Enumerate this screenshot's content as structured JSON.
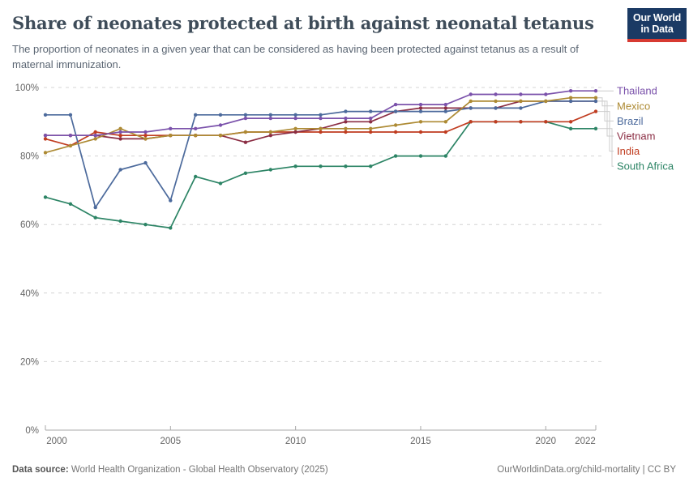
{
  "header": {
    "title": "Share of neonates protected at birth against neonatal tetanus",
    "subtitle": "The proportion of neonates in a given year that can be considered as having been protected against tetanus as a result of maternal immunization."
  },
  "logo": {
    "line1": "Our World",
    "line2": "in Data",
    "bg_color": "#1b3a64",
    "stripe_color": "#d73a32"
  },
  "footer": {
    "source_label": "Data source:",
    "source_text": " World Health Organization - Global Health Observatory (2025)",
    "right_text": "OurWorldinData.org/child-mortality | CC BY"
  },
  "chart_data": {
    "type": "line",
    "title": "Share of neonates protected at birth against neonatal tetanus",
    "xlabel": "",
    "ylabel": "",
    "ylim": [
      0,
      100
    ],
    "y_ticks": [
      0,
      20,
      40,
      60,
      80,
      100
    ],
    "y_tick_suffix": "%",
    "x_ticks": [
      2000,
      2005,
      2010,
      2015,
      2020,
      2022
    ],
    "grid": "horizontal-dashed",
    "legend_position": "right-labels-with-leader-lines",
    "x": [
      2000,
      2001,
      2002,
      2003,
      2004,
      2005,
      2006,
      2007,
      2008,
      2009,
      2010,
      2011,
      2012,
      2013,
      2014,
      2015,
      2016,
      2017,
      2018,
      2019,
      2020,
      2021,
      2022
    ],
    "series": [
      {
        "name": "Thailand",
        "color": "#7B52AB",
        "values": [
          86,
          86,
          86,
          87,
          87,
          88,
          88,
          89,
          91,
          91,
          91,
          91,
          91,
          91,
          95,
          95,
          95,
          98,
          98,
          98,
          98,
          99,
          99
        ]
      },
      {
        "name": "Mexico",
        "color": "#AD8A33",
        "values": [
          81,
          83,
          85,
          88,
          85,
          86,
          86,
          86,
          87,
          87,
          88,
          88,
          88,
          88,
          89,
          90,
          90,
          96,
          96,
          96,
          96,
          97,
          97
        ]
      },
      {
        "name": "Brazil",
        "color": "#4C6A9C",
        "values": [
          92,
          92,
          65,
          76,
          78,
          67,
          92,
          92,
          92,
          92,
          92,
          92,
          93,
          93,
          93,
          93,
          93,
          94,
          94,
          94,
          96,
          96,
          96
        ]
      },
      {
        "name": "Vietnam",
        "color": "#8B2E44",
        "values": [
          86,
          86,
          86,
          85,
          85,
          86,
          86,
          86,
          84,
          86,
          87,
          88,
          90,
          90,
          93,
          94,
          94,
          94,
          94,
          96,
          96,
          96,
          96
        ]
      },
      {
        "name": "India",
        "color": "#C03C20",
        "values": [
          85,
          83,
          87,
          86,
          86,
          86,
          86,
          86,
          87,
          87,
          87,
          87,
          87,
          87,
          87,
          87,
          87,
          90,
          90,
          90,
          90,
          90,
          93
        ]
      },
      {
        "name": "South Africa",
        "color": "#2C8465",
        "values": [
          68,
          66,
          62,
          61,
          60,
          59,
          74,
          72,
          75,
          76,
          77,
          77,
          77,
          77,
          80,
          80,
          80,
          90,
          90,
          90,
          90,
          88,
          88
        ]
      }
    ],
    "axis_color": "#a8a8a8",
    "grid_color": "#d4d4d4",
    "tick_label_color": "#666666",
    "leader_line_color": "#cccccc"
  }
}
